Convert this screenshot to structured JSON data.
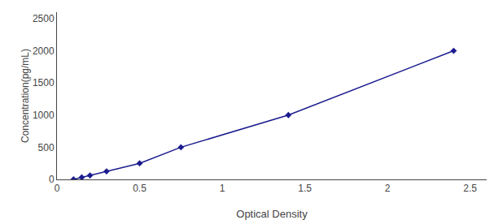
{
  "chart_data": {
    "type": "line",
    "x": [
      0.1,
      0.15,
      0.2,
      0.3,
      0.5,
      0.75,
      1.4,
      2.4
    ],
    "values": [
      0,
      31.25,
      62.5,
      125,
      250,
      500,
      1000,
      2000
    ],
    "color": "#1c1c8f",
    "marker": "diamond",
    "line_style": "solid",
    "xlabel": "Optical Density",
    "ylabel": "Concentration(pg/mL)",
    "xlim": [
      0,
      2.6
    ],
    "ylim": [
      0,
      2600
    ],
    "xticks": [
      0,
      0.5,
      1,
      1.5,
      2,
      2.5
    ],
    "yticks": [
      0,
      500,
      1000,
      1500,
      2000,
      2500
    ],
    "grid": false
  }
}
